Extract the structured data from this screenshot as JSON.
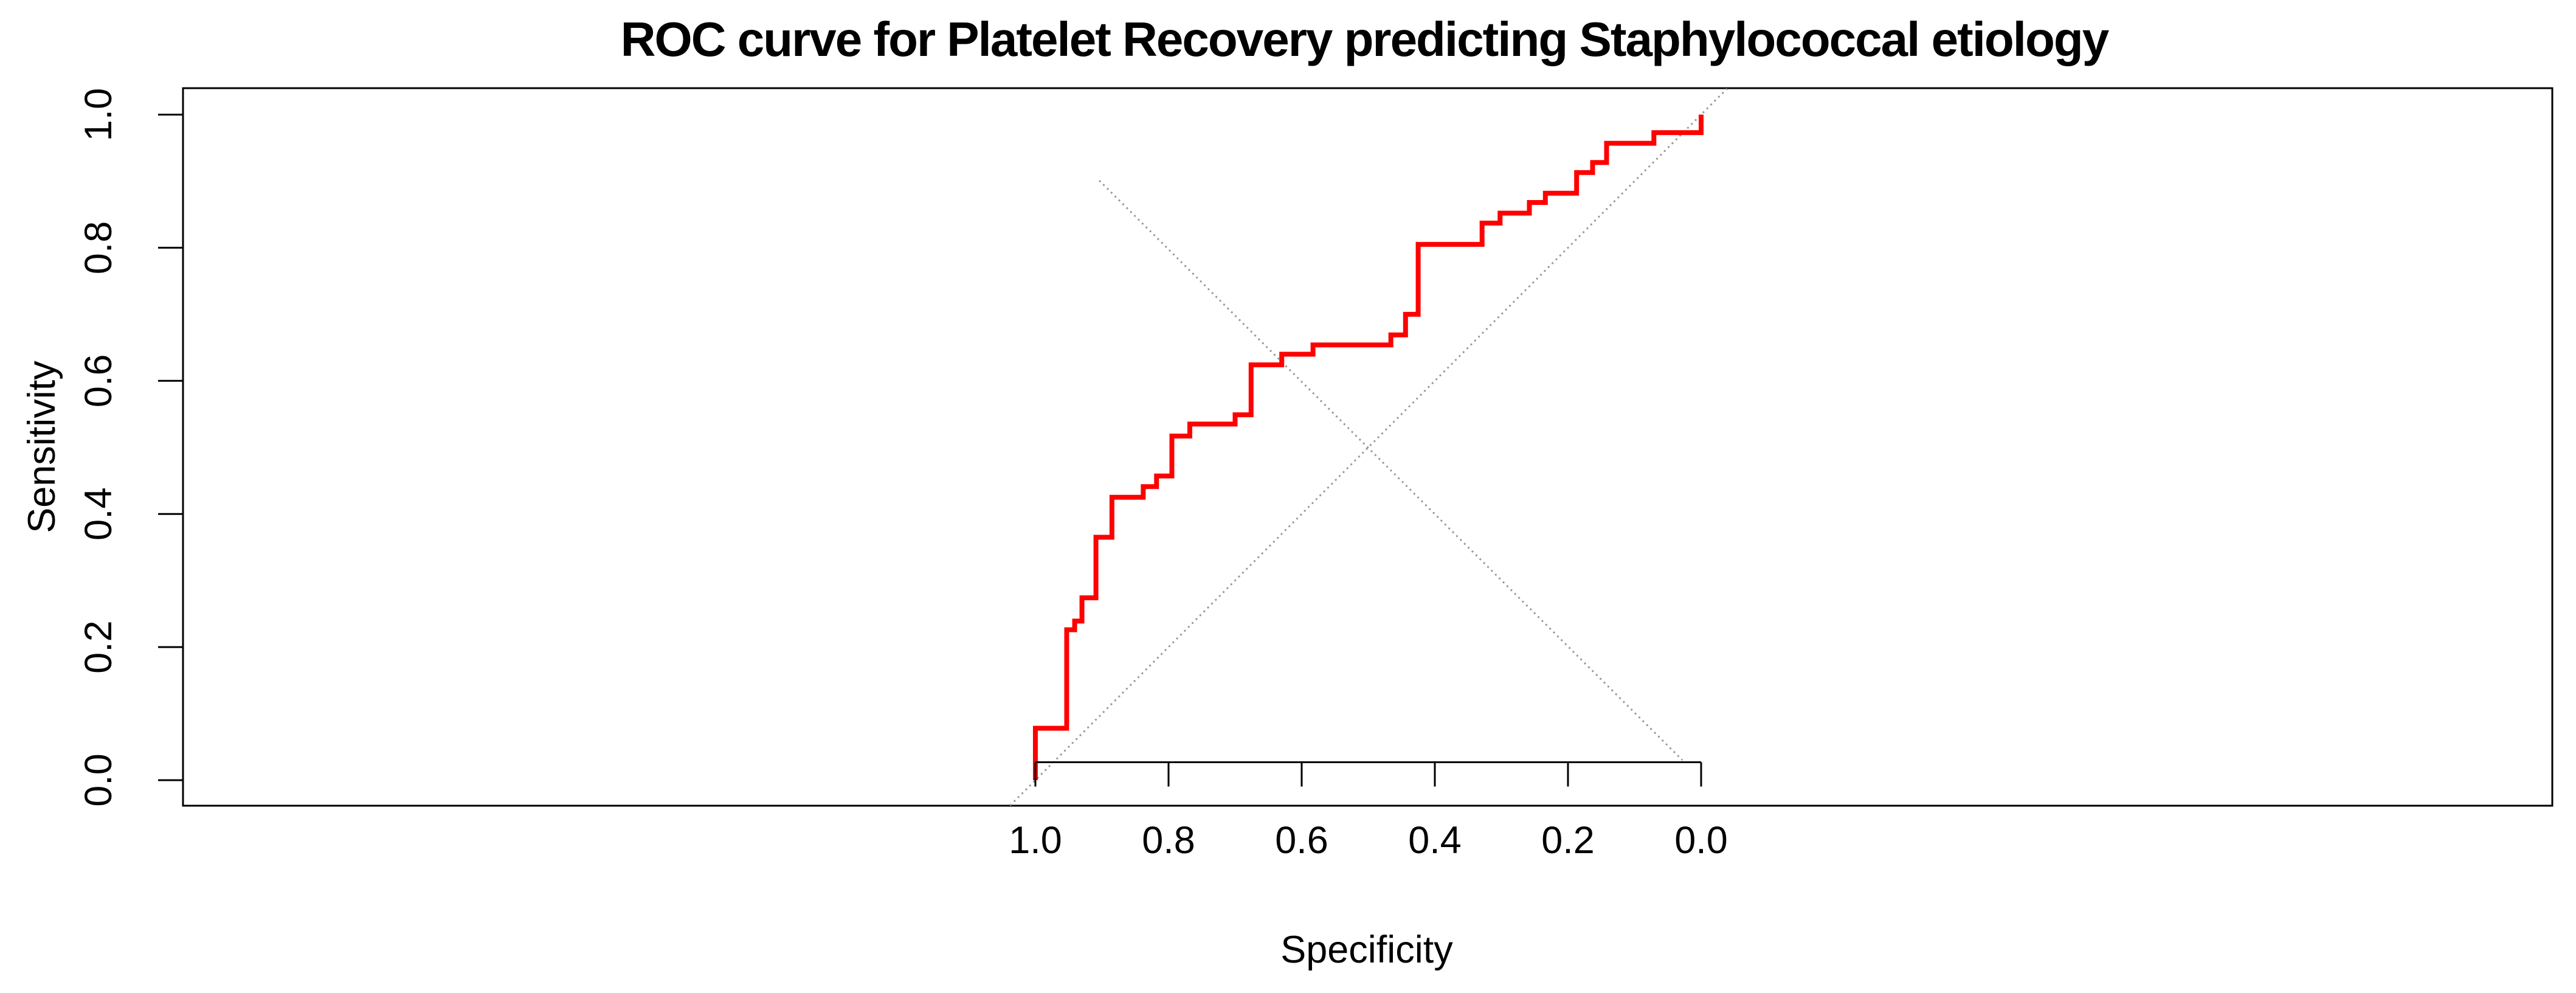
{
  "chart_data": {
    "type": "line",
    "title": "ROC curve for Platelet Recovery predicting Staphylococcal etiology",
    "xlabel": "Specificity",
    "ylabel": "Sensitivity",
    "x_axis_reversed": true,
    "xlim": [
      1.0,
      0.0
    ],
    "ylim": [
      0.0,
      1.0
    ],
    "grid": false,
    "legend": "none",
    "x_ticks": [
      "1.0",
      "0.8",
      "0.6",
      "0.4",
      "0.2",
      "0.0"
    ],
    "x_tick_values": [
      1.0,
      0.8,
      0.6,
      0.4,
      0.2,
      0.0
    ],
    "y_ticks": [
      "0.0",
      "0.2",
      "0.4",
      "0.6",
      "0.8",
      "1.0"
    ],
    "y_tick_values": [
      0.0,
      0.2,
      0.4,
      0.6,
      0.8,
      1.0
    ],
    "series": [
      {
        "name": "roc-curve",
        "label": "ROC curve (Specificity vs Sensitivity step curve)",
        "color": "#ff0000",
        "style": "solid",
        "points": [
          [
            1.0,
            0.0
          ],
          [
            1.0,
            0.078
          ],
          [
            0.953,
            0.078
          ],
          [
            0.953,
            0.226
          ],
          [
            0.941,
            0.226
          ],
          [
            0.941,
            0.239
          ],
          [
            0.93,
            0.239
          ],
          [
            0.93,
            0.274
          ],
          [
            0.909,
            0.274
          ],
          [
            0.909,
            0.365
          ],
          [
            0.885,
            0.365
          ],
          [
            0.885,
            0.425
          ],
          [
            0.838,
            0.425
          ],
          [
            0.838,
            0.441
          ],
          [
            0.818,
            0.441
          ],
          [
            0.818,
            0.457
          ],
          [
            0.795,
            0.457
          ],
          [
            0.795,
            0.517
          ],
          [
            0.768,
            0.517
          ],
          [
            0.768,
            0.535
          ],
          [
            0.7,
            0.535
          ],
          [
            0.7,
            0.549
          ],
          [
            0.676,
            0.549
          ],
          [
            0.676,
            0.624
          ],
          [
            0.63,
            0.624
          ],
          [
            0.63,
            0.64
          ],
          [
            0.583,
            0.64
          ],
          [
            0.583,
            0.654
          ],
          [
            0.466,
            0.654
          ],
          [
            0.466,
            0.669
          ],
          [
            0.444,
            0.669
          ],
          [
            0.444,
            0.7
          ],
          [
            0.425,
            0.7
          ],
          [
            0.425,
            0.805
          ],
          [
            0.329,
            0.805
          ],
          [
            0.329,
            0.837
          ],
          [
            0.302,
            0.837
          ],
          [
            0.302,
            0.852
          ],
          [
            0.258,
            0.852
          ],
          [
            0.258,
            0.868
          ],
          [
            0.234,
            0.868
          ],
          [
            0.234,
            0.882
          ],
          [
            0.187,
            0.882
          ],
          [
            0.187,
            0.913
          ],
          [
            0.163,
            0.913
          ],
          [
            0.163,
            0.928
          ],
          [
            0.142,
            0.928
          ],
          [
            0.142,
            0.957
          ],
          [
            0.071,
            0.957
          ],
          [
            0.071,
            0.973
          ],
          [
            0.0,
            0.973
          ],
          [
            0.0,
            1.0
          ]
        ]
      },
      {
        "name": "chance-diagonal",
        "label": "Chance diagonal from (1,0) to (0,1), clipped at plot box",
        "color": "#9a9a9a",
        "style": "dotted",
        "points": [
          [
            1.038,
            -0.038
          ],
          [
            -0.039,
            1.039
          ]
        ]
      },
      {
        "name": "identity-diagonal",
        "label": "Descending gray diagonal segment",
        "color": "#9a9a9a",
        "style": "dotted",
        "points": [
          [
            0.904,
            0.901
          ],
          [
            0.028,
            0.03
          ]
        ]
      }
    ]
  },
  "colors": {
    "background": "#ffffff",
    "axis": "#000000",
    "text": "#000000",
    "roc_curve": "#ff0000",
    "diagonals": "#9a9a9a"
  }
}
